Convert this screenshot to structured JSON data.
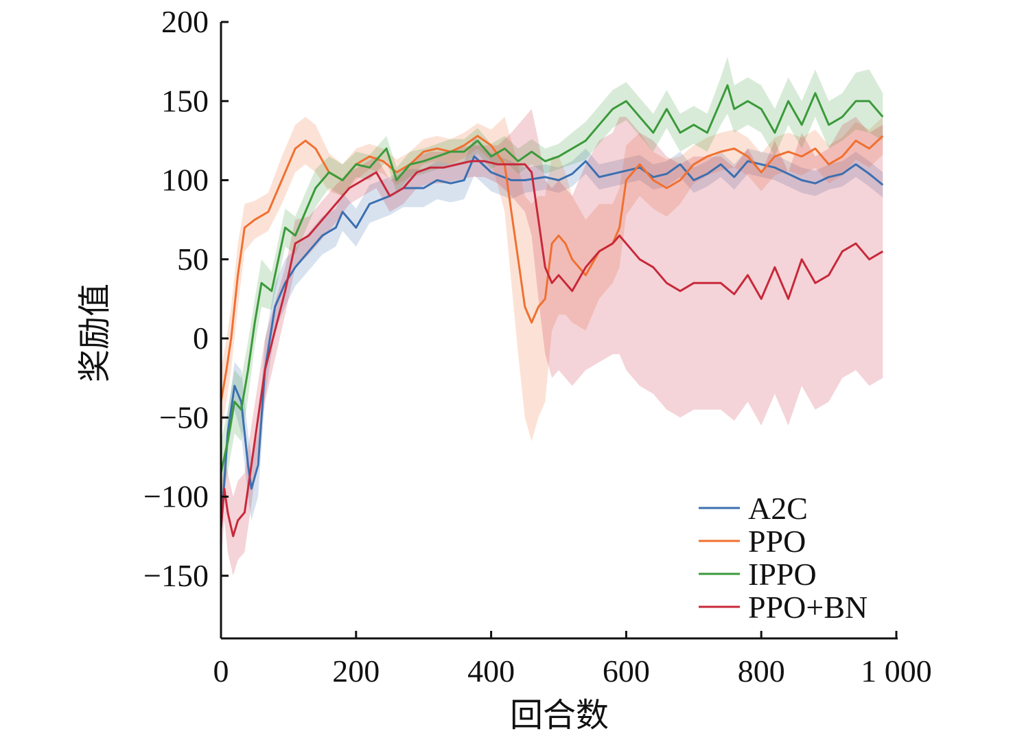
{
  "chart_data": {
    "type": "line",
    "title": "",
    "xlabel": "回合数",
    "ylabel": "奖励值",
    "xlim": [
      0,
      1000
    ],
    "ylim": [
      -190,
      200
    ],
    "xticks": [
      0,
      200,
      400,
      600,
      800,
      1000
    ],
    "xtick_labels": [
      "0",
      "200",
      "400",
      "600",
      "800",
      "1 000"
    ],
    "yticks": [
      200,
      150,
      100,
      50,
      0,
      -50,
      -100,
      -150
    ],
    "ytick_labels": [
      "200",
      "150",
      "100",
      "50",
      "0",
      "−50",
      "−100",
      "−150"
    ],
    "legend_position": "bottom-right",
    "grid": false,
    "series": [
      {
        "name": "A2C",
        "color": "#3b6fb0",
        "x": [
          0,
          10,
          20,
          30,
          40,
          45,
          55,
          65,
          80,
          95,
          110,
          130,
          150,
          170,
          180,
          200,
          220,
          250,
          270,
          300,
          320,
          340,
          360,
          375,
          400,
          430,
          450,
          480,
          500,
          520,
          540,
          560,
          580,
          600,
          620,
          640,
          660,
          680,
          700,
          720,
          740,
          760,
          780,
          800,
          820,
          840,
          860,
          880,
          900,
          920,
          940,
          960,
          980
        ],
        "y": [
          -120,
          -60,
          -30,
          -40,
          -80,
          -95,
          -80,
          -20,
          20,
          35,
          45,
          55,
          65,
          70,
          80,
          70,
          85,
          90,
          95,
          95,
          100,
          98,
          100,
          115,
          105,
          100,
          100,
          102,
          100,
          104,
          112,
          102,
          104,
          106,
          108,
          102,
          104,
          110,
          100,
          104,
          110,
          102,
          112,
          110,
          108,
          104,
          100,
          98,
          102,
          104,
          110,
          104,
          97
        ],
        "band": [
          12,
          12,
          15,
          20,
          20,
          20,
          20,
          18,
          15,
          15,
          12,
          12,
          12,
          12,
          12,
          12,
          12,
          12,
          12,
          12,
          12,
          12,
          12,
          12,
          12,
          12,
          8,
          8,
          8,
          8,
          8,
          8,
          8,
          8,
          8,
          8,
          8,
          8,
          8,
          8,
          8,
          8,
          8,
          8,
          8,
          8,
          8,
          8,
          8,
          8,
          8,
          8,
          8
        ]
      },
      {
        "name": "PPO",
        "color": "#f07030",
        "x": [
          0,
          8,
          15,
          25,
          35,
          50,
          70,
          90,
          110,
          125,
          140,
          160,
          180,
          200,
          220,
          240,
          260,
          280,
          300,
          320,
          340,
          360,
          380,
          400,
          420,
          430,
          440,
          450,
          460,
          470,
          480,
          490,
          500,
          510,
          520,
          540,
          560,
          580,
          590,
          600,
          620,
          640,
          660,
          680,
          700,
          720,
          740,
          760,
          780,
          800,
          820,
          840,
          860,
          880,
          900,
          920,
          940,
          960,
          980
        ],
        "y": [
          -40,
          -20,
          0,
          40,
          70,
          75,
          80,
          100,
          120,
          125,
          120,
          105,
          100,
          110,
          115,
          112,
          105,
          110,
          118,
          120,
          118,
          122,
          128,
          122,
          110,
          80,
          50,
          20,
          10,
          20,
          25,
          60,
          65,
          60,
          50,
          40,
          55,
          60,
          70,
          100,
          110,
          100,
          95,
          100,
          110,
          115,
          118,
          120,
          115,
          105,
          115,
          118,
          115,
          120,
          110,
          115,
          125,
          120,
          128
        ],
        "band": [
          20,
          20,
          20,
          20,
          15,
          12,
          12,
          15,
          15,
          15,
          15,
          12,
          10,
          10,
          8,
          8,
          8,
          8,
          8,
          8,
          8,
          8,
          8,
          10,
          30,
          45,
          60,
          70,
          75,
          70,
          65,
          55,
          50,
          45,
          40,
          35,
          30,
          25,
          25,
          22,
          20,
          18,
          18,
          15,
          12,
          12,
          12,
          12,
          12,
          12,
          12,
          12,
          12,
          12,
          12,
          12,
          12,
          12,
          12
        ]
      },
      {
        "name": "IPPO",
        "color": "#3a9a3a",
        "x": [
          0,
          10,
          20,
          30,
          40,
          50,
          60,
          75,
          85,
          95,
          110,
          125,
          140,
          160,
          180,
          200,
          220,
          245,
          260,
          280,
          300,
          320,
          340,
          360,
          380,
          400,
          420,
          440,
          460,
          480,
          500,
          520,
          540,
          560,
          580,
          600,
          620,
          640,
          660,
          680,
          700,
          720,
          740,
          750,
          760,
          780,
          800,
          820,
          840,
          860,
          880,
          900,
          920,
          940,
          960,
          980
        ],
        "y": [
          -85,
          -65,
          -40,
          -45,
          -20,
          10,
          35,
          30,
          50,
          70,
          65,
          80,
          95,
          105,
          100,
          110,
          108,
          120,
          100,
          110,
          112,
          115,
          118,
          118,
          125,
          115,
          120,
          112,
          118,
          112,
          115,
          120,
          125,
          135,
          145,
          150,
          140,
          130,
          145,
          130,
          135,
          130,
          150,
          160,
          145,
          150,
          145,
          130,
          150,
          135,
          155,
          135,
          140,
          150,
          150,
          140
        ],
        "band": [
          20,
          20,
          20,
          20,
          18,
          15,
          15,
          12,
          12,
          12,
          12,
          12,
          12,
          10,
          10,
          8,
          8,
          8,
          8,
          8,
          8,
          8,
          8,
          8,
          8,
          8,
          8,
          8,
          8,
          8,
          8,
          10,
          12,
          12,
          12,
          12,
          12,
          12,
          12,
          12,
          12,
          12,
          15,
          18,
          15,
          15,
          15,
          15,
          15,
          15,
          15,
          15,
          15,
          18,
          20,
          15
        ]
      },
      {
        "name": "PPO+BN",
        "color": "#c8283a",
        "x": [
          0,
          5,
          10,
          18,
          25,
          35,
          45,
          55,
          65,
          80,
          95,
          110,
          130,
          150,
          170,
          190,
          210,
          230,
          250,
          270,
          290,
          310,
          330,
          350,
          370,
          390,
          410,
          430,
          450,
          460,
          470,
          480,
          490,
          500,
          520,
          540,
          560,
          580,
          590,
          600,
          620,
          640,
          660,
          680,
          700,
          720,
          740,
          760,
          780,
          800,
          820,
          840,
          860,
          880,
          900,
          920,
          940,
          960,
          980
        ],
        "y": [
          -120,
          -95,
          -110,
          -125,
          -115,
          -110,
          -80,
          -50,
          -20,
          5,
          30,
          60,
          65,
          75,
          85,
          95,
          100,
          105,
          90,
          95,
          105,
          108,
          108,
          110,
          112,
          112,
          110,
          110,
          110,
          105,
          75,
          45,
          35,
          40,
          30,
          45,
          55,
          60,
          65,
          60,
          50,
          45,
          35,
          30,
          35,
          35,
          35,
          28,
          40,
          25,
          45,
          25,
          50,
          35,
          40,
          55,
          60,
          50,
          55
        ],
        "band": [
          20,
          20,
          25,
          25,
          25,
          25,
          25,
          22,
          20,
          18,
          15,
          15,
          12,
          12,
          12,
          10,
          10,
          10,
          10,
          10,
          10,
          10,
          10,
          10,
          10,
          10,
          12,
          20,
          30,
          40,
          50,
          55,
          60,
          60,
          60,
          65,
          70,
          70,
          75,
          80,
          80,
          80,
          80,
          80,
          80,
          80,
          80,
          80,
          80,
          80,
          80,
          80,
          80,
          80,
          80,
          80,
          80,
          80,
          80
        ]
      }
    ]
  }
}
